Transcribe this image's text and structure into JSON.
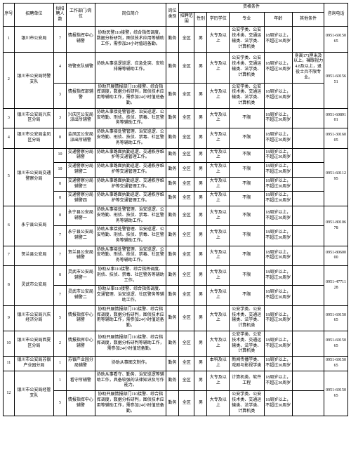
{
  "headers": {
    "seq": "序号",
    "unit": "招聘单位",
    "num": "拟招聘人数",
    "dept": "工作部门/岗位",
    "desc": "岗位简介",
    "cat": "岗位类别",
    "qual_group": "资格条件",
    "range": "招聘范围",
    "sex": "性别",
    "edu": "学历学位",
    "major": "专业",
    "age": "年龄",
    "other": "其他条件",
    "phone": "咨询电话"
  },
  "rows": [
    {
      "seq": "1",
      "unit": "银川市公安局",
      "num": "7",
      "dept": "情报指挥中心辅警",
      "desc": "协助民警110接警，综合指挥调度，数据分析研判，图侦技术应用等辅助工作，需参加24小时值班备勤。",
      "cat": "勤务",
      "range": "全区",
      "sex": "男",
      "edu": "大专及以上",
      "major": "公安学类、公安技术类、交通运输类、法学类、计算机类",
      "age": "18周岁以上，不超过30周岁",
      "other": "",
      "phone": "0951-6915065"
    },
    {
      "seq": "2",
      "seq_span": 2,
      "unit": "银川市公安局特警支队",
      "unit_span": 2,
      "num": "4",
      "dept": "特警支队辅警",
      "desc": "协助从事巡逻巡逻、应急处突、安检排爆等辅助工作。",
      "cat": "勤务",
      "range": "全区",
      "sex": "男",
      "edu": "大专及以上",
      "major": "公安学类、公安技术类、交通运输类、法学类、计算机类",
      "age": "18周岁以上，不超过30周岁",
      "other": "身高171厘米及以上，裸眼视力4.8及以上，退役士兵不限专业。",
      "phone": "0951-6015651",
      "phone_span": 2
    },
    {
      "num": "3",
      "dept": "情报指挥部辅警",
      "desc": "协助开展情报部门110接警、综合指挥调度，数据分析研判，图侦技术应用等辅助工作，需参加24小时值班备勤。",
      "cat": "勤务",
      "range": "全区",
      "sex": "男",
      "edu": "大专及以上",
      "major": "公安学类、公安技术类、交通运输类、法学类、计算机类",
      "age": "18周岁以上，不超过30周岁",
      "other": ""
    },
    {
      "seq": "3",
      "unit": "银川市公安局兴庆区分局",
      "num": "3",
      "dept": "兴庆区公安局派出所辅警",
      "desc": "协助从事接处警管理、治安巡逻、公安特勤、刑侦、技侦、禁毒、社区警务等辅助工作。",
      "cat": "勤务",
      "range": "全区",
      "sex": "男",
      "edu": "大专及以上",
      "major": "不限",
      "age": "18周岁以上，不超过30周岁",
      "other": "",
      "phone": "0951-6089101"
    },
    {
      "seq": "4",
      "unit": "银川市公安局金凤区分局",
      "num": "8",
      "dept": "金凤区公安局派出所辅警",
      "desc": "协助从事接处警管理、治安巡逻、公安特勤、刑侦、技侦、禁毒、社区警务等辅助工作。",
      "cat": "勤务",
      "range": "全区",
      "sex": "男",
      "edu": "大专及以上",
      "major": "不限",
      "age": "18周岁以上，不超过30周岁",
      "other": "",
      "phone": "0951-3016005"
    },
    {
      "seq": "5",
      "seq_span": 4,
      "unit": "银川市公安局交通警察分局",
      "unit_span": 4,
      "num": "10",
      "dept": "交通警察分局辅警",
      "desc": "协助从事路面执勤巡逻、交通秩序维护等交通管理工作。",
      "cat": "勤务",
      "range": "全区",
      "sex": "男",
      "edu": "大专及以上",
      "major": "不限",
      "age": "18周岁以上，不超过30周岁",
      "other": "",
      "phone": "0951-6011295",
      "phone_span": 4
    },
    {
      "num": "10",
      "dept": "交通警察分局辅警二",
      "desc": "协助从事路面执勤巡逻、交通秩序维护等交通管理工作。",
      "cat": "勤务",
      "range": "全区",
      "sex": "男",
      "edu": "大专及以上",
      "major": "不限",
      "age": "18周岁以上，不超过30周岁",
      "other": ""
    },
    {
      "num": "8",
      "dept": "交通警察分局辅警三",
      "desc": "协助从事路面执勤巡逻、交通秩序维护等交通管理工作。",
      "cat": "勤务",
      "range": "全区",
      "sex": "男",
      "edu": "大专及以上",
      "major": "不限",
      "age": "18周岁以上，不超过30周岁",
      "other": ""
    },
    {
      "num": "8",
      "dept": "交通警察分局辅警四",
      "desc": "协助从事路面执勤巡逻、交通秩序维护等交通管理工作。",
      "cat": "勤务",
      "range": "全区",
      "sex": "男",
      "edu": "大专及以上",
      "major": "不限",
      "age": "18周岁以上，不超过30周岁",
      "other": ""
    },
    {
      "seq": "6",
      "seq_span": 2,
      "unit": "永宁县公安局",
      "unit_span": 2,
      "num": "8",
      "dept": "永宁县公安局辅警一",
      "desc": "协助从事接处警管理、治安巡逻、公安特勤、刑侦、技侦、禁毒、社区警务等辅助工作。",
      "cat": "勤务",
      "range": "全区",
      "sex": "男",
      "edu": "大专及以上",
      "major": "不限",
      "age": "18周岁以上，不超过30周岁",
      "other": "",
      "phone": "0951-8010678",
      "phone_span": 2
    },
    {
      "num": "7",
      "dept": "永宁县公安局辅警二",
      "desc": "协助从事接处警管理、治安巡逻、公安特勤、刑侦、技侦、禁毒、社区警务等辅助工作。",
      "cat": "勤务",
      "range": "全区",
      "sex": "男",
      "edu": "大专及以上",
      "major": "不限",
      "age": "18周岁以上，不超过30周岁",
      "other": ""
    },
    {
      "seq": "7",
      "unit": "贺兰县公安局",
      "num": "7",
      "dept": "贺兰县公安局辅警",
      "desc": "协助从事接处警管理、治安巡逻、公安特勤、刑侦、技侦、禁毒、社区警务等辅助工作。",
      "cat": "勤务",
      "range": "全区",
      "sex": "男",
      "edu": "大专及以上",
      "major": "不限",
      "age": "18周岁以上，不超过30周岁",
      "other": "",
      "phone": "0951-8060000"
    },
    {
      "seq": "8",
      "seq_span": 2,
      "unit": "灵武市公安局",
      "unit_span": 2,
      "num": "8",
      "dept": "灵武市公安局辅警一",
      "desc": "协助从事110接警、综合指挥调度、刑侦、技侦、禁毒、社区警务等辅助工作。",
      "cat": "勤务",
      "range": "全区",
      "sex": "男",
      "edu": "大专及以上",
      "major": "不限",
      "age": "18周岁以上，不超过30周岁",
      "other": "",
      "phone": "0951-4771128",
      "phone_span": 2
    },
    {
      "num": "7",
      "dept": "灵武市公安局辅警二",
      "desc": "协助从事110接警、综合指挥调度、交通管理、治安巡逻、社区警务等辅助工作。",
      "cat": "勤务",
      "range": "全区",
      "sex": "男",
      "edu": "大专及以上",
      "major": "不限",
      "age": "18周岁以上，不超过30周岁",
      "other": ""
    },
    {
      "seq": "9",
      "unit": "银川市公安局兴庆经济分局",
      "num": "5",
      "dept": "情报指挥中心辅警",
      "desc": "协助开展情报部门110接警、综合指挥调度，数据分析研判，图侦技术应用等辅助工作，需参加24小时值班备勤。",
      "cat": "勤务",
      "range": "全区",
      "sex": "男",
      "edu": "大专及以上",
      "major": "公安学类、公安技术类、交通运输类、法学类、计算机类",
      "age": "18周岁以上，不超过30周岁",
      "other": "",
      "phone": "0951-6915065"
    },
    {
      "seq": "10",
      "unit": "银川市公安局西夏区分局",
      "num": "2",
      "dept": "情报指挥中心辅警",
      "desc": "协助开展情报部门110接警、综合指挥调度，数据分析研判等辅助工作，需参加24小时值班备勤。",
      "cat": "勤务",
      "range": "全区",
      "sex": "男",
      "edu": "大专及以上",
      "major": "公安学类、公安技术类、交通运输类、法学类、计算机类",
      "age": "18周岁以上，不超过30周岁",
      "other": "",
      "phone": "0951-6915065"
    },
    {
      "seq": "11",
      "unit": "银川市公安局苏银产业园分局",
      "num": "1",
      "dept": "苏银产业园分局辅警",
      "desc": "协助从事图文制作。",
      "cat": "勤务",
      "range": "全区",
      "sex": "男",
      "edu": "本科及以上",
      "major": "新闻传播学类、戏剧与影视学类",
      "age": "18周岁以上，不超过30周岁",
      "other": "",
      "phone": "0951-6915065"
    },
    {
      "seq": "12",
      "seq_span": 2,
      "unit": "银川市公安局经管支队",
      "unit_span": 2,
      "num": "1",
      "dept": "看守所辅警",
      "desc": "协助从事看守、勤务、治安巡逻等辅助工作，具备较强的法律知识及写作能力。",
      "cat": "勤务",
      "range": "全区",
      "sex": "男",
      "edu": "大专及以上",
      "major": "计算机类、软件工程",
      "age": "18周岁以上，不超过30周岁",
      "other": "",
      "phone": "0951-6915065",
      "phone_span": 2
    },
    {
      "num": "5",
      "dept": "情报指挥中心辅警",
      "desc": "协助开展情报部门110接警、综合指挥调度，数据分析研判，图侦技术应用等辅助工作，需参加24小时值班备勤。",
      "cat": "勤务",
      "range": "全区",
      "sex": "男",
      "edu": "大专及以上",
      "major": "公安学类、公安技术类、交通运输类、法学类、计算机类",
      "age": "18周岁以上，不超过30周岁",
      "other": ""
    }
  ]
}
